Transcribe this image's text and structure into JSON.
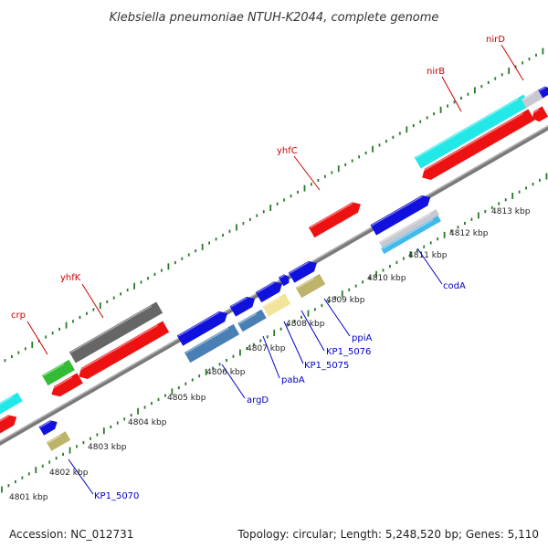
{
  "title": "Klebsiella pneumoniae NTUH-K2044, complete genome",
  "accession_text": "Accession: NC_012731",
  "topology_text": "Topology: circular; Length: 5,248,520 bp; Genes: 5,110",
  "scale_labels": [
    "4801 kbp",
    "4802 kbp",
    "4803 kbp",
    "4804 kbp",
    "4805 kbp",
    "4806 kbp",
    "4807 kbp",
    "4808 kbp",
    "4809 kbp",
    "4810 kbp",
    "4811 kbp",
    "4812 kbp",
    "4813 kbp"
  ],
  "top_labels": [
    {
      "name": "crp"
    },
    {
      "name": "yhfK"
    },
    {
      "name": "yhfC"
    },
    {
      "name": "nirB"
    },
    {
      "name": "nirD"
    }
  ],
  "bottom_labels": [
    {
      "name": "KP1_5070"
    },
    {
      "name": "argD"
    },
    {
      "name": "pabA"
    },
    {
      "name": "KP1_5075"
    },
    {
      "name": "KP1_5076"
    },
    {
      "name": "ppiA"
    },
    {
      "name": "codA"
    }
  ],
  "colors": {
    "backbone": "#8a8a8a",
    "tick": "#2a7a2a",
    "red": "#ee1111",
    "blue": "#1111dd",
    "cyan": "#22e8e8",
    "gray": "#666666",
    "green": "#33bb33",
    "khaki": "#bcb46a",
    "steel": "#4a7fb5",
    "pale_yellow": "#f2e49a",
    "light_gray": "#c8c8d0",
    "light_blue": "#44b8e8",
    "top_label": "#cc0000",
    "bottom_label": "#0000cc"
  }
}
